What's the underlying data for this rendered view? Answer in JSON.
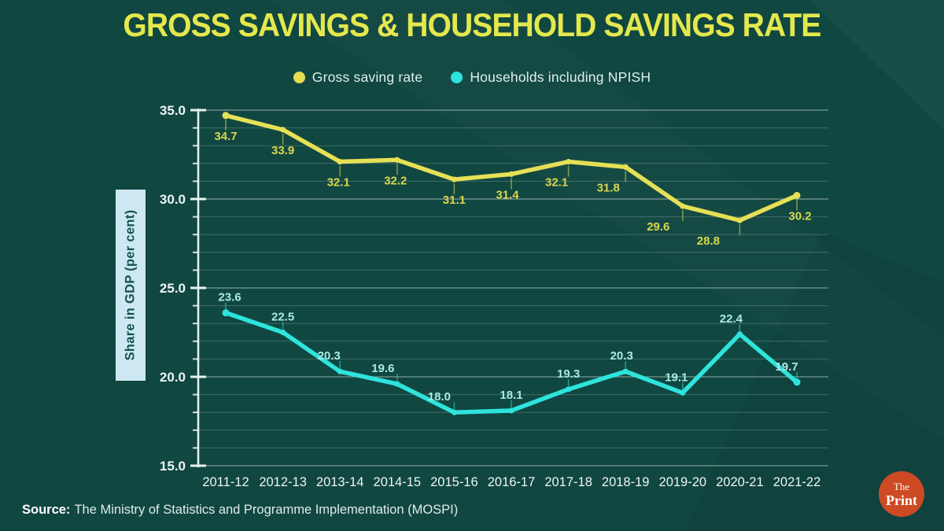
{
  "title": "GROSS SAVINGS & HOUSEHOLD SAVINGS RATE",
  "legend": [
    {
      "label": "Gross saving rate",
      "color": "#e5dd52"
    },
    {
      "label": "Households including  NPISH",
      "color": "#2be4dc"
    }
  ],
  "source": {
    "prefix": "Source:",
    "text": "The Ministry of Statistics and Programme Implementation (MOSPI)"
  },
  "logo": {
    "top": "The",
    "bottom": "Print",
    "bg": "#cd4a24"
  },
  "colors": {
    "background": "#114741",
    "title": "#e4e84d",
    "axis": "#e8f3f1",
    "tick_label": "#edf5f3",
    "grid": "#dff0ee",
    "ylabel_box": "#cde8f2",
    "ylabel_text": "#15524a"
  },
  "chart_data": {
    "type": "line",
    "categories": [
      "2011-12",
      "2012-13",
      "2013-14",
      "2014-15",
      "2015-16",
      "2016-17",
      "2017-18",
      "2018-19",
      "2019-20",
      "2020-21",
      "2021-22"
    ],
    "series": [
      {
        "name": "Gross saving rate",
        "color": "#e6e056",
        "label_color": "#d9d64e",
        "values": [
          34.7,
          33.9,
          32.1,
          32.2,
          31.1,
          31.4,
          32.1,
          31.8,
          29.6,
          28.8,
          30.2
        ],
        "label_position": "below",
        "label_dx": [
          0,
          0,
          -2,
          -2,
          0,
          -5,
          -15,
          -22,
          -31,
          -40,
          4
        ]
      },
      {
        "name": "Households including NPISH",
        "color": "#2ee4dc",
        "label_color": "#a9ebe7",
        "values": [
          23.6,
          22.5,
          20.3,
          19.6,
          18.0,
          18.1,
          19.3,
          20.3,
          19.1,
          22.4,
          19.7
        ],
        "label_position": "above",
        "label_dx": [
          5,
          0,
          -14,
          -18,
          -19,
          0,
          0,
          -5,
          -8,
          -11,
          -13
        ]
      }
    ],
    "title": "Gross Savings & Household Savings Rate",
    "xlabel": "",
    "ylabel": "Share in GDP (per cent)",
    "ylim": [
      15,
      35
    ],
    "y_major_tick_step": 5,
    "y_minor_tick_step": 1,
    "y_tick_decimals": 1,
    "grid": true,
    "legend_position": "top"
  }
}
